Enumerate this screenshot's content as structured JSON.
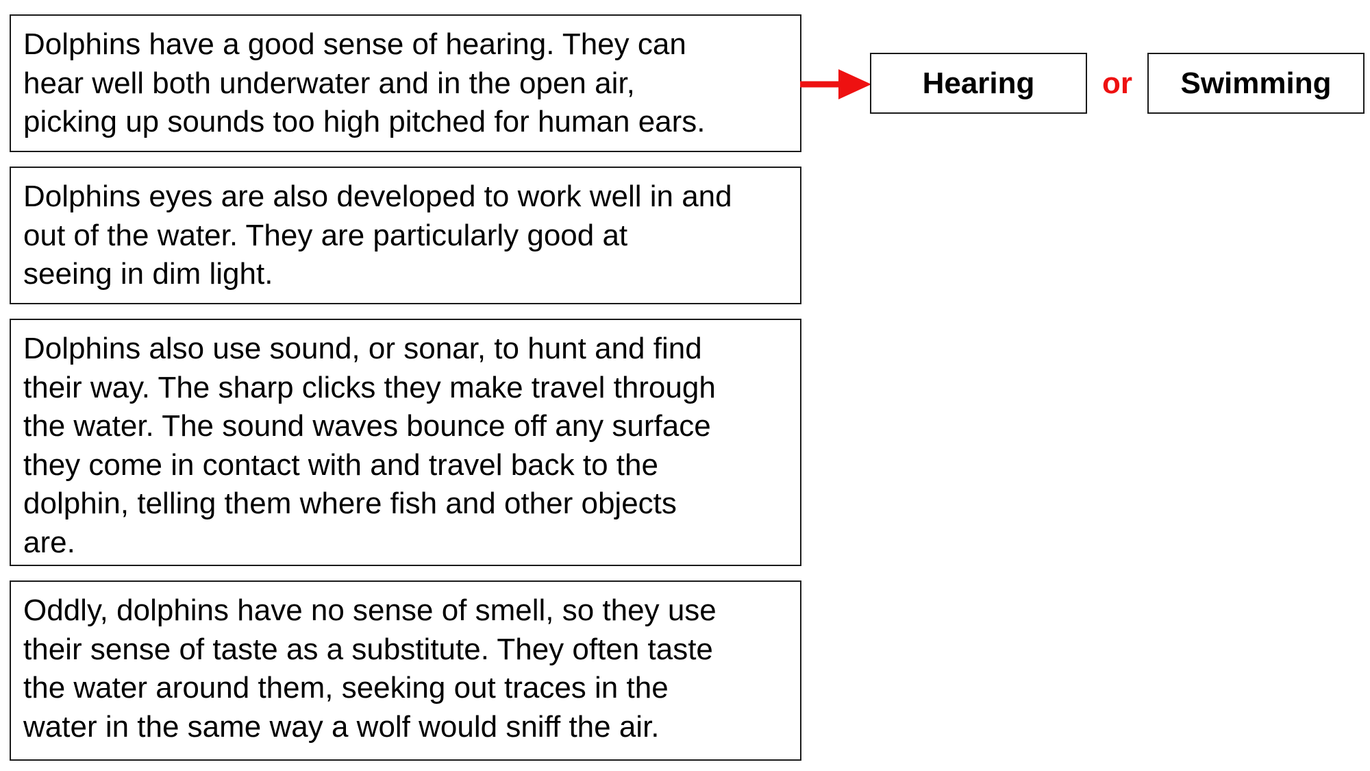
{
  "passages": [
    "Dolphins have a good sense of hearing.  They can\nhear well both underwater and in the open air,\npicking up sounds too high pitched for human ears.",
    "Dolphins eyes are also developed to work well in and\nout of the water.  They are particularly good at\nseeing in dim light.",
    "Dolphins also use sound, or sonar, to hunt and find\ntheir way.  The sharp clicks they make travel through\nthe water.  The sound waves bounce off any surface\nthey come in contact with and travel back to the\ndolphin, telling them where fish and other objects\nare.",
    "Oddly, dolphins have no sense of smell, so they use\ntheir sense of taste as a substitute.  They often taste\nthe water around them, seeking out traces in the\nwater in the same way a wolf would sniff the air."
  ],
  "question": {
    "option_a": "Hearing",
    "separator": "or",
    "option_b": "Swimming"
  },
  "colors": {
    "arrow": "#ee1111",
    "separator": "#ee1111",
    "border": "#1a1a1a"
  }
}
